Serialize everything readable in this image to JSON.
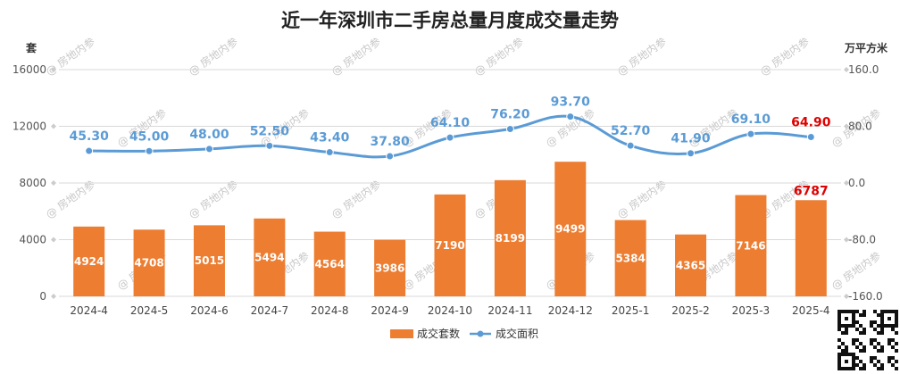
{
  "chart_data": {
    "type": "bar",
    "title": "近一年深圳市二手房总量月度成交量走势",
    "left_unit": "套",
    "right_unit": "万平方米",
    "categories": [
      "2024-4",
      "2024-5",
      "2024-6",
      "2024-7",
      "2024-8",
      "2024-9",
      "2024-10",
      "2024-11",
      "2024-12",
      "2025-1",
      "2025-2",
      "2025-3",
      "2025-4"
    ],
    "series": [
      {
        "name": "成交套数",
        "type": "bar",
        "axis": "left",
        "color": "#ED7D31",
        "values": [
          4924,
          4708,
          5015,
          5494,
          4564,
          3986,
          7190,
          8199,
          9499,
          5384,
          4365,
          7146,
          6787
        ],
        "labels": [
          "4924",
          "4708",
          "5015",
          "5494",
          "4564",
          "3986",
          "7190",
          "8199",
          "9499",
          "5384",
          "4365",
          "7146",
          "6787"
        ]
      },
      {
        "name": "成交面积",
        "type": "line",
        "axis": "right",
        "color": "#5B9BD5",
        "values": [
          45.3,
          45.0,
          48.0,
          52.5,
          43.4,
          37.8,
          64.1,
          76.2,
          93.7,
          52.7,
          41.9,
          69.1,
          64.9
        ],
        "labels": [
          "45.30",
          "45.00",
          "48.00",
          "52.50",
          "43.40",
          "37.80",
          "64.10",
          "76.20",
          "93.70",
          "52.70",
          "41.90",
          "69.10",
          "64.90"
        ]
      }
    ],
    "left_axis": {
      "min": 0,
      "max": 16000,
      "ticks": [
        "0",
        "4000",
        "8000",
        "12000",
        "16000"
      ]
    },
    "right_axis": {
      "min": -160,
      "max": 160,
      "ticks": [
        "-160.0",
        "-80.0",
        "0.0",
        "80.0",
        "160.0"
      ]
    },
    "highlight_color": "#E00000",
    "grid": true,
    "legend_position": "bottom",
    "watermark": "房地内参"
  }
}
